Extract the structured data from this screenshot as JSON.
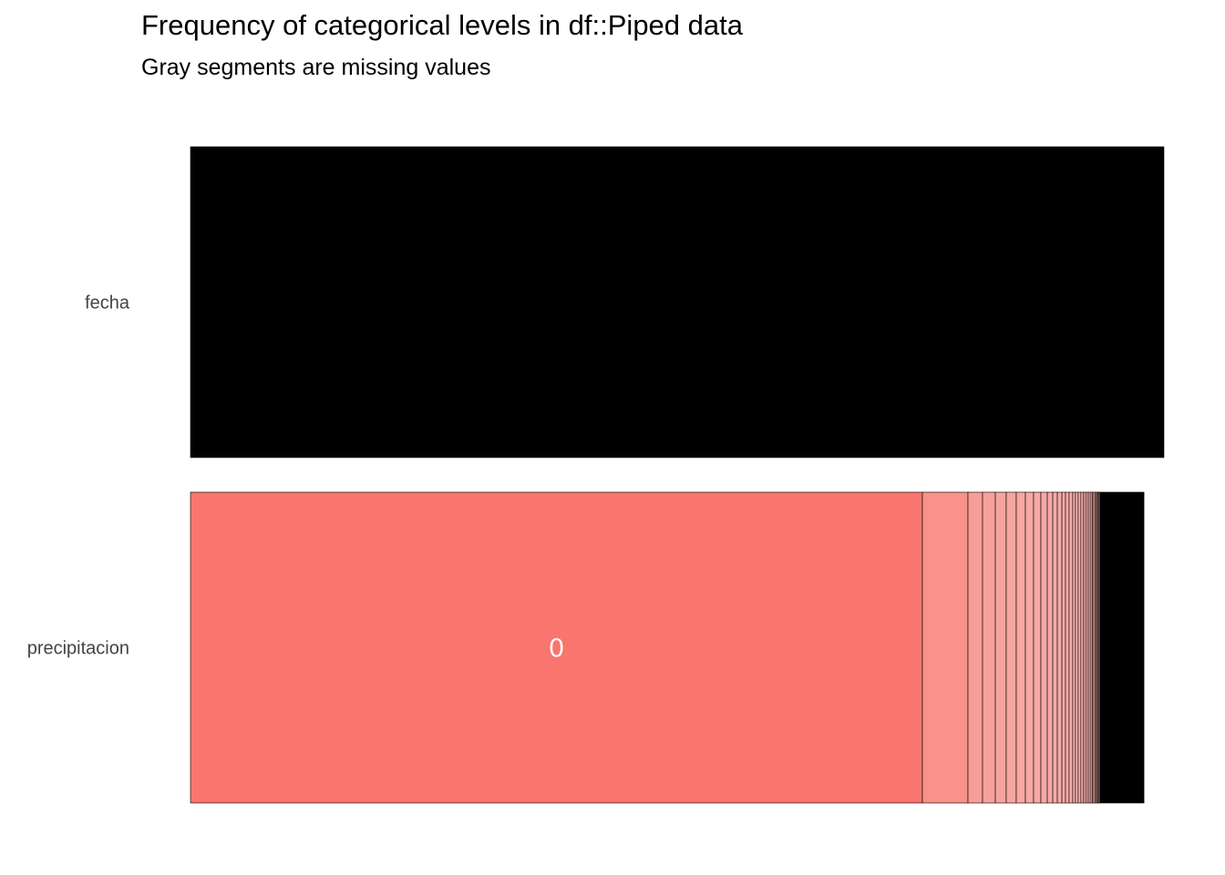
{
  "chart_data": {
    "type": "bar",
    "title": "Frequency of categorical levels in df::Piped data",
    "subtitle": "Gray segments are missing values",
    "orientation": "horizontal stacked proportion",
    "xlim": [
      0,
      1
    ],
    "rows": [
      {
        "label": "fecha",
        "segments": [
          {
            "level": "",
            "share": 1.0,
            "color": "#000000"
          }
        ]
      },
      {
        "label": "precipitacion",
        "label_segment": "0",
        "segments": [
          {
            "level": "0",
            "share": 0.7519,
            "color": "#F8766D"
          },
          {
            "level": "",
            "share": 0.0468,
            "color": "#F8928A"
          },
          {
            "level": "",
            "share": 0.015,
            "color": "#F79D97"
          },
          {
            "level": "",
            "share": 0.0131,
            "color": "#F6A29C"
          },
          {
            "level": "",
            "share": 0.0112,
            "color": "#F6A49E"
          },
          {
            "level": "",
            "share": 0.0103,
            "color": "#F6A6A0"
          },
          {
            "level": "",
            "share": 0.0094,
            "color": "#F6A8A2"
          },
          {
            "level": "",
            "share": 0.0084,
            "color": "#F6A8A3"
          },
          {
            "level": "",
            "share": 0.0075,
            "color": "#F6A9A4"
          },
          {
            "level": "",
            "share": 0.0066,
            "color": "#F6AAA5"
          },
          {
            "level": "",
            "share": 0.0056,
            "color": "#F6AAA5"
          },
          {
            "level": "",
            "share": 0.0047,
            "color": "#F6ABA6"
          },
          {
            "level": "",
            "share": 0.0047,
            "color": "#F6ABA6"
          },
          {
            "level": "",
            "share": 0.0037,
            "color": "#F6ACA7"
          },
          {
            "level": "",
            "share": 0.0037,
            "color": "#F6ACA7"
          },
          {
            "level": "",
            "share": 0.0037,
            "color": "#F6ACA7"
          },
          {
            "level": "",
            "share": 0.0028,
            "color": "#F6ADA8"
          },
          {
            "level": "",
            "share": 0.0028,
            "color": "#F6ADA8"
          },
          {
            "level": "",
            "share": 0.0028,
            "color": "#F6ADA8"
          },
          {
            "level": "",
            "share": 0.0023,
            "color": "#F6ADA8"
          },
          {
            "level": "",
            "share": 0.0023,
            "color": "#F6ADA8"
          },
          {
            "level": "",
            "share": 0.0019,
            "color": "#F6AEA9"
          },
          {
            "level": "",
            "share": 0.0019,
            "color": "#F6AEA9"
          },
          {
            "level": "",
            "share": 0.0019,
            "color": "#F6AEA9"
          },
          {
            "level": "",
            "share": 0.0014,
            "color": "#F6AEA9"
          },
          {
            "level": "",
            "share": 0.0014,
            "color": "#F6AEA9"
          },
          {
            "level": "",
            "share": 0.0014,
            "color": "#F6AEA9"
          },
          {
            "level": "",
            "share": 0.0014,
            "color": "#F6AEA9"
          },
          {
            "level": "",
            "share": 0.0009,
            "color": "#F6AEA9"
          },
          {
            "level": "",
            "share": 0.0009,
            "color": "#F6AEA9"
          },
          {
            "level": "",
            "share": 0.0009,
            "color": "#F6AEA9"
          },
          {
            "level": "",
            "share": 0.0009,
            "color": "#F6AEA9"
          },
          {
            "level": "",
            "share": 0.0453,
            "color": "#000000"
          }
        ]
      }
    ]
  }
}
